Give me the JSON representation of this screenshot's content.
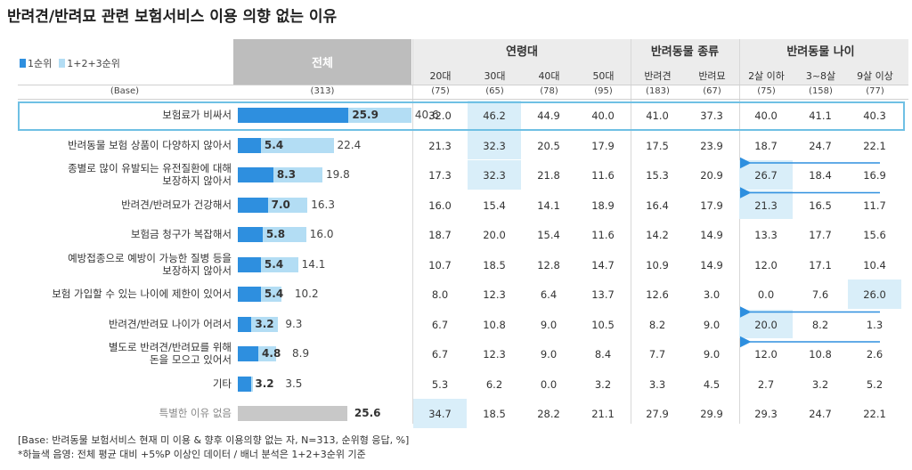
{
  "title": "반려견/반려묘 관련 보험서비스 이용 의향 없는 이유",
  "legend": {
    "first": "1순위",
    "combined": "1+2+3순위",
    "first_color": "#2e8fdf",
    "combined_color": "#b3ddf4"
  },
  "total_header": "전체",
  "base_label": "(Base)",
  "base_total": "(313)",
  "groups": [
    {
      "label": "연령대",
      "cols": [
        "20대",
        "30대",
        "40대",
        "50대"
      ],
      "bases": [
        "(75)",
        "(65)",
        "(78)",
        "(95)"
      ]
    },
    {
      "label": "반려동물 종류",
      "cols": [
        "반려견",
        "반려묘"
      ],
      "bases": [
        "(183)",
        "(67)"
      ]
    },
    {
      "label": "반려동물 나이",
      "cols": [
        "2살 이하",
        "3~8살",
        "9살 이상"
      ],
      "bases": [
        "(75)",
        "(158)",
        "(77)"
      ]
    }
  ],
  "chart_data": {
    "type": "bar",
    "title": "반려견/반려묘 관련 보험서비스 이용 의향 없는 이유",
    "series": [
      {
        "name": "1순위",
        "values": [
          25.9,
          5.4,
          8.3,
          7.0,
          5.8,
          5.4,
          5.4,
          3.2,
          4.8,
          3.2,
          25.6
        ]
      },
      {
        "name": "1+2+3순위",
        "values": [
          40.6,
          22.4,
          19.8,
          16.3,
          16.0,
          14.1,
          10.2,
          9.3,
          8.9,
          3.5,
          null
        ]
      }
    ],
    "rows": [
      {
        "label": "보험료가 비싸서",
        "first": "25.9",
        "combined": "40.6",
        "cells": [
          "32.0",
          "46.2",
          "44.9",
          "40.0",
          "41.0",
          "37.3",
          "40.0",
          "41.1",
          "40.3"
        ]
      },
      {
        "label": "반려동물 보험 상품이 다양하지 않아서",
        "first": "5.4",
        "combined": "22.4",
        "cells": [
          "21.3",
          "32.3",
          "20.5",
          "17.9",
          "17.5",
          "23.9",
          "18.7",
          "24.7",
          "22.1"
        ]
      },
      {
        "label": "종별로 많이 유발되는 유전질환에 대해\n보장하지 않아서",
        "first": "8.3",
        "combined": "19.8",
        "cells": [
          "17.3",
          "32.3",
          "21.8",
          "11.6",
          "15.3",
          "20.9",
          "26.7",
          "18.4",
          "16.9"
        ]
      },
      {
        "label": "반려견/반려묘가 건강해서",
        "first": "7.0",
        "combined": "16.3",
        "cells": [
          "16.0",
          "15.4",
          "14.1",
          "18.9",
          "16.4",
          "17.9",
          "21.3",
          "16.5",
          "11.7"
        ]
      },
      {
        "label": "보험금 청구가 복잡해서",
        "first": "5.8",
        "combined": "16.0",
        "cells": [
          "18.7",
          "20.0",
          "15.4",
          "11.6",
          "14.2",
          "14.9",
          "13.3",
          "17.7",
          "15.6"
        ]
      },
      {
        "label": "예방접종으로 예방이 가능한 질병 등을\n보장하지 않아서",
        "first": "5.4",
        "combined": "14.1",
        "cells": [
          "10.7",
          "18.5",
          "12.8",
          "14.7",
          "10.9",
          "14.9",
          "12.0",
          "17.1",
          "10.4"
        ]
      },
      {
        "label": "보험 가입할 수 있는 나이에 제한이 있어서",
        "first": "5.4",
        "combined": "10.2",
        "cells": [
          "8.0",
          "12.3",
          "6.4",
          "13.7",
          "12.6",
          "3.0",
          "0.0",
          "7.6",
          "26.0"
        ]
      },
      {
        "label": "반려견/반려묘 나이가 어려서",
        "first": "3.2",
        "combined": "9.3",
        "cells": [
          "6.7",
          "10.8",
          "9.0",
          "10.5",
          "8.2",
          "9.0",
          "20.0",
          "8.2",
          "1.3"
        ]
      },
      {
        "label": "별도로 반려견/반려묘를 위해\n돈을 모으고 있어서",
        "first": "4.8",
        "combined": "8.9",
        "cells": [
          "6.7",
          "12.3",
          "9.0",
          "8.4",
          "7.7",
          "9.0",
          "12.0",
          "10.8",
          "2.6"
        ]
      },
      {
        "label": "기타",
        "first": "3.2",
        "combined": "3.5",
        "cells": [
          "5.3",
          "6.2",
          "0.0",
          "3.2",
          "3.3",
          "4.5",
          "2.7",
          "3.2",
          "5.2"
        ]
      },
      {
        "label": "특별한 이유 없음",
        "first": "25.6",
        "combined": "",
        "cells": [
          "34.7",
          "18.5",
          "28.2",
          "21.1",
          "27.9",
          "29.9",
          "29.3",
          "24.7",
          "22.1"
        ]
      }
    ],
    "highlights": [
      [
        0,
        1
      ],
      [
        1,
        1
      ],
      [
        2,
        1
      ],
      [
        2,
        6
      ],
      [
        3,
        6
      ],
      [
        6,
        8
      ],
      [
        7,
        6
      ],
      [
        10,
        0
      ]
    ],
    "arrows": [
      [
        2,
        6
      ],
      [
        3,
        6
      ],
      [
        7,
        6
      ],
      [
        8,
        6
      ]
    ],
    "bar_max": 100
  },
  "footnotes": [
    "[Base: 반려동물 보험서비스 현재 미 이용 & 향후 이용의향 없는 자, N=313, 순위형 응답, %]",
    "*하늘색 음영: 전체 평균 대비 +5%P 이상인 데이터 / 배너 분석은 1+2+3순위 기준"
  ]
}
